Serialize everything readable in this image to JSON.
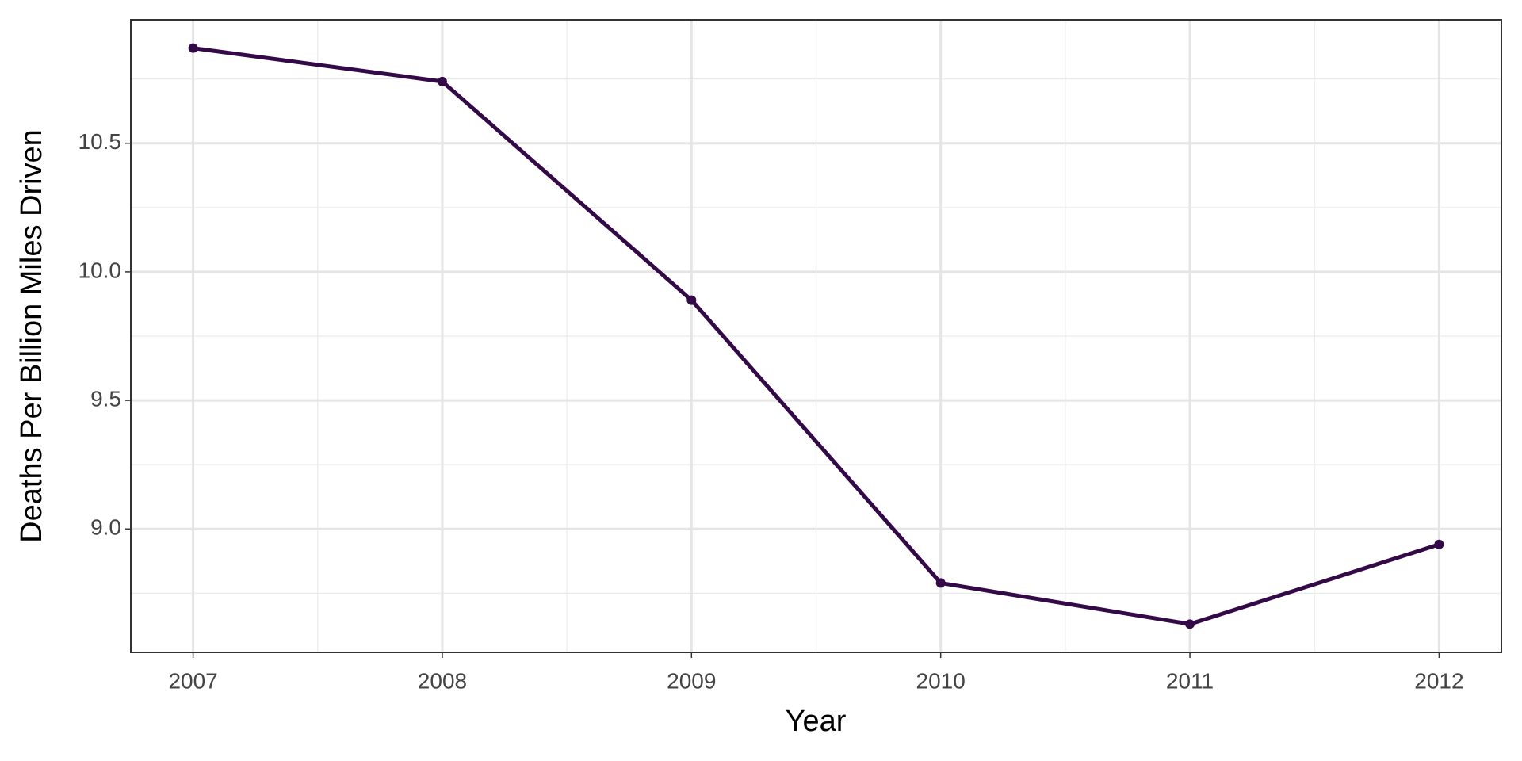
{
  "chart_data": {
    "type": "line",
    "x_label": "Year",
    "y_label": "Deaths Per Billion Miles Driven",
    "x": [
      2007,
      2008,
      2009,
      2010,
      2011,
      2012
    ],
    "values": [
      10.87,
      10.74,
      9.89,
      8.79,
      8.63,
      8.94
    ],
    "color": "#330a47",
    "xlim": [
      2006.75,
      2012.25
    ],
    "xticks": [
      2007,
      2008,
      2009,
      2010,
      2011,
      2012
    ],
    "ylim": [
      8.52,
      10.98
    ],
    "yticks": [
      {
        "value": 9,
        "label": "9.0"
      },
      {
        "value": 9.5,
        "label": "9.5"
      },
      {
        "value": 10,
        "label": "10.0"
      },
      {
        "value": 10.5,
        "label": "10.5"
      }
    ],
    "grid": true,
    "minor_grid": true
  }
}
